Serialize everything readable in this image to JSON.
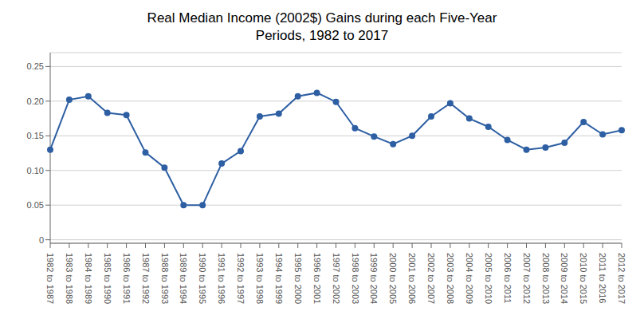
{
  "chart_data": {
    "type": "line",
    "title": "Real Median Income (2002$) Gains during each Five-Year\nPeriods, 1982 to 2017",
    "categories": [
      "1982 to 1987",
      "1983 to 1988",
      "1984 to 1989",
      "1985 to 1990",
      "1986 to 1991",
      "1987 to 1992",
      "1988 to 1993",
      "1989 to 1994",
      "1990 to 1995",
      "1991 to 1996",
      "1992 to 1997",
      "1993 to 1998",
      "1994 to 1999",
      "1995 to 2000",
      "1996 to 2001",
      "1997 to 2002",
      "1998 to 2003",
      "1999 to 2004",
      "2000 to 2005",
      "2001 to 2006",
      "2002 to 2007",
      "2003 to 2008",
      "2004 to 2009",
      "2005 to 2010",
      "2006 to 2011",
      "2007 to 2012",
      "2008 to 2013",
      "2009 to 2014",
      "2010 to 2015",
      "2011 to 2016",
      "2012 to 2017"
    ],
    "values": [
      0.13,
      0.202,
      0.207,
      0.183,
      0.18,
      0.126,
      0.104,
      0.05,
      0.05,
      0.11,
      0.128,
      0.178,
      0.182,
      0.207,
      0.212,
      0.199,
      0.161,
      0.149,
      0.138,
      0.15,
      0.178,
      0.197,
      0.175,
      0.163,
      0.144,
      0.13,
      0.133,
      0.14,
      0.17,
      0.152,
      0.158
    ],
    "color": "#2E5FA3",
    "marker": "circle",
    "ylim": [
      -0.005,
      0.27
    ],
    "yticks": [
      0,
      0.05,
      {
        "value": 0.1,
        "label": "0.10"
      },
      0.15,
      {
        "value": 0.2,
        "label": "0.20"
      },
      0.25
    ],
    "grid": true
  }
}
